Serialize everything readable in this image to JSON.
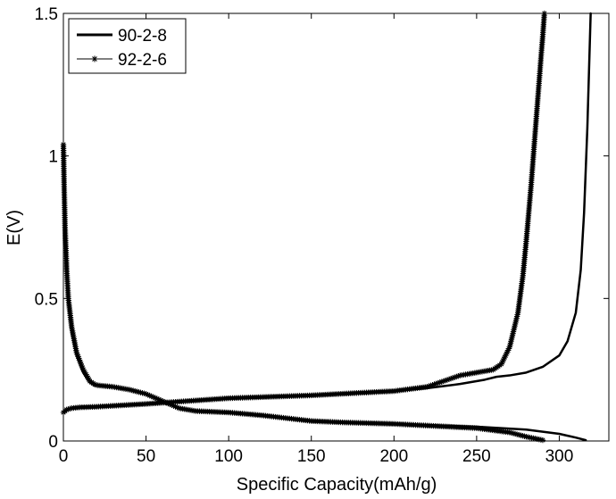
{
  "chart_data": {
    "type": "line",
    "xlabel": "Specific Capacity(mAh/g)",
    "ylabel": "E(V)",
    "xlim": [
      0,
      330
    ],
    "ylim": [
      0,
      1.5
    ],
    "xticks": [
      0,
      50,
      100,
      150,
      200,
      250,
      300
    ],
    "xtick_labels": [
      "0",
      "50",
      "100",
      "150",
      "200",
      "250",
      "300"
    ],
    "yticks": [
      0,
      0.5,
      1,
      1.5
    ],
    "ytick_labels": [
      "0",
      "0.5",
      "1",
      "1.5"
    ],
    "legend_position": "top-left",
    "grid": false,
    "series": [
      {
        "name": "90-2-8",
        "marker": "none",
        "color": "#000000",
        "curves": [
          {
            "label": "discharge",
            "x": [
              0,
              0.5,
              1,
              2,
              3,
              5,
              8,
              12,
              16,
              19,
              21,
              30,
              40,
              50,
              60,
              70,
              80,
              100,
              120,
              150,
              170,
              200,
              250,
              280,
              300,
              310,
              316
            ],
            "y": [
              1.04,
              0.85,
              0.72,
              0.58,
              0.48,
              0.38,
              0.3,
              0.24,
              0.205,
              0.195,
              0.195,
              0.19,
              0.18,
              0.165,
              0.14,
              0.115,
              0.105,
              0.1,
              0.09,
              0.07,
              0.065,
              0.06,
              0.05,
              0.04,
              0.025,
              0.012,
              0.003
            ]
          },
          {
            "label": "charge",
            "x": [
              0,
              2,
              5,
              10,
              20,
              50,
              100,
              150,
              200,
              220,
              240,
              255,
              262,
              270,
              280,
              290,
              300,
              305,
              310,
              313,
              315,
              317,
              318,
              319
            ],
            "y": [
              0.1,
              0.11,
              0.115,
              0.118,
              0.12,
              0.13,
              0.15,
              0.16,
              0.175,
              0.185,
              0.2,
              0.215,
              0.225,
              0.23,
              0.24,
              0.26,
              0.3,
              0.35,
              0.45,
              0.6,
              0.8,
              1.1,
              1.3,
              1.5
            ]
          }
        ]
      },
      {
        "name": "92-2-6",
        "marker": "asterisk",
        "color": "#000000",
        "curves": [
          {
            "label": "discharge",
            "x": [
              0,
              0.5,
              1,
              2,
              3,
              5,
              8,
              12,
              16,
              19,
              21,
              30,
              40,
              50,
              60,
              70,
              80,
              100,
              120,
              150,
              170,
              200,
              250,
              270,
              280,
              290
            ],
            "y": [
              1.04,
              0.88,
              0.75,
              0.6,
              0.5,
              0.4,
              0.31,
              0.25,
              0.21,
              0.198,
              0.195,
              0.19,
              0.18,
              0.165,
              0.14,
              0.115,
              0.105,
              0.1,
              0.09,
              0.07,
              0.065,
              0.06,
              0.045,
              0.03,
              0.015,
              0.003
            ]
          },
          {
            "label": "charge",
            "x": [
              0,
              2,
              5,
              10,
              20,
              50,
              100,
              150,
              200,
              220,
              240,
              250,
              260,
              265,
              270,
              275,
              278,
              280,
              283,
              285,
              287,
              289,
              290,
              291
            ],
            "y": [
              0.1,
              0.11,
              0.115,
              0.118,
              0.12,
              0.13,
              0.15,
              0.16,
              0.175,
              0.19,
              0.23,
              0.24,
              0.25,
              0.27,
              0.33,
              0.45,
              0.58,
              0.7,
              0.9,
              1.05,
              1.2,
              1.35,
              1.42,
              1.5
            ]
          }
        ]
      }
    ]
  }
}
